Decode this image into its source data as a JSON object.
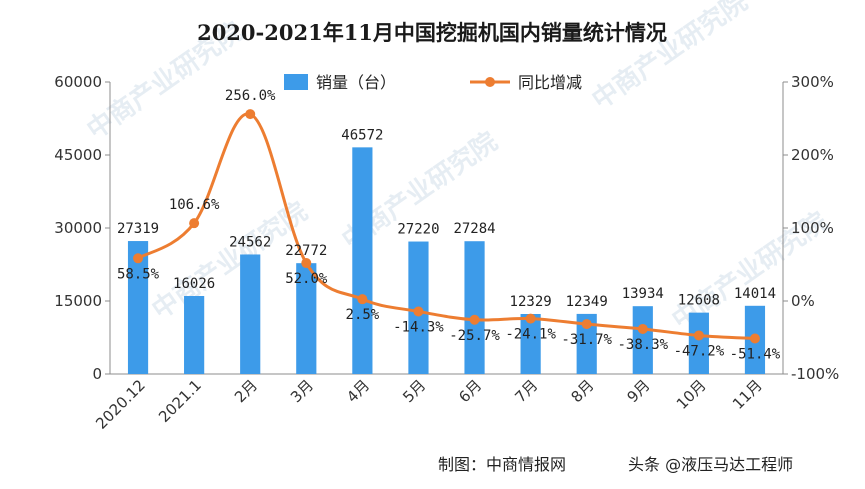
{
  "chart_data": {
    "type": "bar",
    "title": "2020-2021年11月中国挖掘机国内销量统计情况",
    "categories": [
      "2020.12",
      "2021.1",
      "2月",
      "3月",
      "4月",
      "5月",
      "6月",
      "7月",
      "8月",
      "9月",
      "10月",
      "11月"
    ],
    "series": [
      {
        "name": "销量（台）",
        "type": "bar",
        "axis": "left",
        "color": "#3d9be9",
        "values": [
          27319,
          16026,
          24562,
          22772,
          46572,
          27220,
          27284,
          12329,
          12349,
          13934,
          12608,
          14014
        ],
        "labels": [
          "27319",
          "16026",
          "24562",
          "22772",
          "46572",
          "27220",
          "27284",
          "12329",
          "12349",
          "13934",
          "12608",
          "14014"
        ]
      },
      {
        "name": "同比增减",
        "type": "line",
        "axis": "right",
        "color": "#ed7d31",
        "values": [
          58.5,
          106.6,
          256.0,
          52.0,
          2.5,
          -14.3,
          -25.7,
          -24.1,
          -31.7,
          -38.3,
          -47.2,
          -51.4
        ],
        "labels": [
          "58.5%",
          "106.6%",
          "256.0%",
          "52.0%",
          "2.5%",
          "-14.3%",
          "-25.7%",
          "-24.1%",
          "-31.7%",
          "-38.3%",
          "-47.2%",
          "-51.4%"
        ]
      }
    ],
    "y_left": {
      "ticks": [
        "0",
        "15000",
        "30000",
        "45000",
        "60000"
      ],
      "ylim": [
        0,
        60000
      ]
    },
    "y_right": {
      "ticks": [
        "-100%",
        "0%",
        "100%",
        "200%",
        "300%"
      ],
      "ylim": [
        -100,
        300
      ]
    },
    "grid": false,
    "legend_position": "top-center"
  },
  "footer": {
    "source": "制图：中商情报网",
    "credit": "头条 @液压马达工程师"
  },
  "watermark": "中商产业研究院"
}
